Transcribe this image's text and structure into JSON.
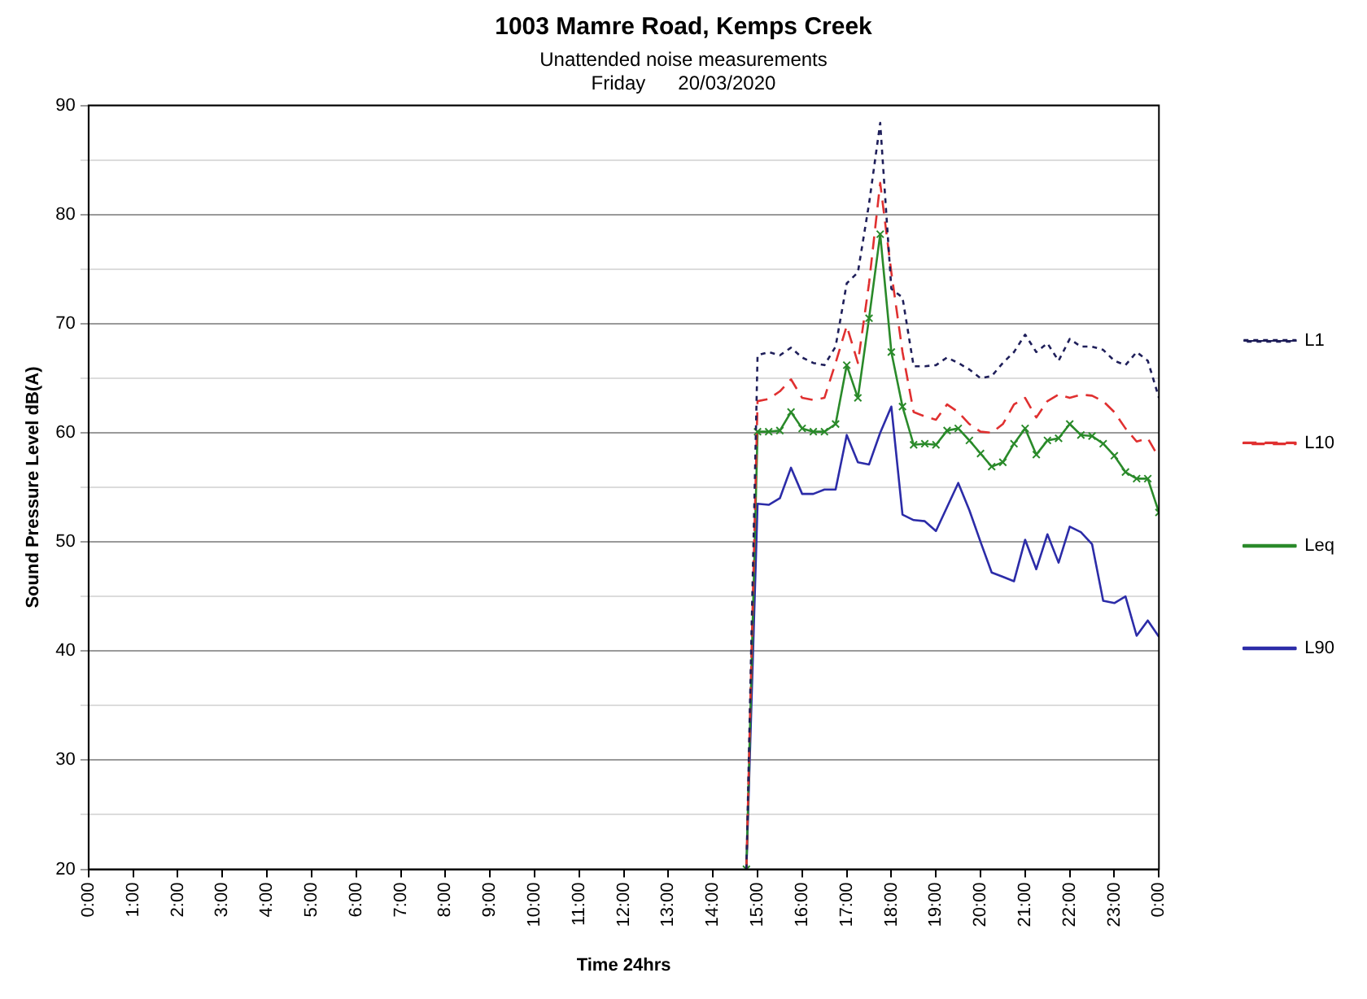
{
  "chart_data": {
    "type": "line",
    "title": "1003 Mamre Road, Kemps Creek",
    "subtitle": "Unattended noise measurements",
    "annotations": [
      "Friday      20/03/2020"
    ],
    "xlabel": "Time 24hrs",
    "ylabel": "Sound Pressure Level dB(A)",
    "x": [
      14.75,
      15,
      15.25,
      15.5,
      15.75,
      16,
      16.25,
      16.5,
      16.75,
      17,
      17.25,
      17.5,
      17.75,
      18,
      18.25,
      18.5,
      18.75,
      19,
      19.25,
      19.5,
      19.75,
      20,
      20.25,
      20.5,
      20.75,
      21,
      21.25,
      21.5,
      21.75,
      22,
      22.25,
      22.5,
      22.75,
      23,
      23.25,
      23.5,
      23.75,
      24
    ],
    "series": [
      {
        "name": "L1",
        "color": "#1f1f5a",
        "line_style": "dotted",
        "marker": "none",
        "values": [
          20,
          67.1,
          67.4,
          67.1,
          67.8,
          66.9,
          66.4,
          66.2,
          67.9,
          73.7,
          74.7,
          81.0,
          88.4,
          73.2,
          72.4,
          66.1,
          66.1,
          66.2,
          66.9,
          66.4,
          65.8,
          65.0,
          65.2,
          66.4,
          67.4,
          69.0,
          67.4,
          68.2,
          66.6,
          68.6,
          67.9,
          67.9,
          67.6,
          66.6,
          66.2,
          67.4,
          66.6,
          63.2
        ]
      },
      {
        "name": "L10",
        "color": "#e03030",
        "line_style": "dashed",
        "marker": "none",
        "values": [
          20,
          62.9,
          63.1,
          63.8,
          64.9,
          63.2,
          63.0,
          63.2,
          66.4,
          69.8,
          66.4,
          73.7,
          82.9,
          74.7,
          67.4,
          61.9,
          61.5,
          61.2,
          62.6,
          61.9,
          60.8,
          60.1,
          60.0,
          60.8,
          62.6,
          63.2,
          61.4,
          62.9,
          63.5,
          63.2,
          63.5,
          63.4,
          62.9,
          61.9,
          60.4,
          59.2,
          59.5,
          57.7
        ]
      },
      {
        "name": "Leq",
        "color": "#2a8a2a",
        "line_style": "solid",
        "marker": "cross",
        "values": [
          20,
          60.1,
          60.1,
          60.2,
          61.9,
          60.4,
          60.1,
          60.1,
          60.8,
          66.2,
          63.2,
          70.5,
          78.2,
          67.4,
          62.4,
          58.9,
          59.0,
          58.9,
          60.2,
          60.4,
          59.3,
          58.1,
          56.9,
          57.3,
          59.0,
          60.4,
          58.0,
          59.3,
          59.5,
          60.8,
          59.8,
          59.7,
          59.0,
          57.9,
          56.4,
          55.8,
          55.8,
          52.7
        ]
      },
      {
        "name": "L90",
        "color": "#2c2ca8",
        "line_style": "solid",
        "marker": "none",
        "values": [
          20,
          53.5,
          53.4,
          54.0,
          56.8,
          54.4,
          54.4,
          54.8,
          54.8,
          59.8,
          57.3,
          57.1,
          60.0,
          62.4,
          52.5,
          52.0,
          51.9,
          51.0,
          53.2,
          55.4,
          52.9,
          50.0,
          47.2,
          46.8,
          46.4,
          50.2,
          47.5,
          50.7,
          48.1,
          51.4,
          50.9,
          49.8,
          44.6,
          44.4,
          45.0,
          41.4,
          42.8,
          41.3
        ]
      }
    ],
    "xlim": [
      0,
      24
    ],
    "xticks": [
      {
        "value": 0,
        "label": "0:00"
      },
      {
        "value": 1,
        "label": "1:00"
      },
      {
        "value": 2,
        "label": "2:00"
      },
      {
        "value": 3,
        "label": "3:00"
      },
      {
        "value": 4,
        "label": "4:00"
      },
      {
        "value": 5,
        "label": "5:00"
      },
      {
        "value": 6,
        "label": "6:00"
      },
      {
        "value": 7,
        "label": "7:00"
      },
      {
        "value": 8,
        "label": "8:00"
      },
      {
        "value": 9,
        "label": "9:00"
      },
      {
        "value": 10,
        "label": "10:00"
      },
      {
        "value": 11,
        "label": "11:00"
      },
      {
        "value": 12,
        "label": "12:00"
      },
      {
        "value": 13,
        "label": "13:00"
      },
      {
        "value": 14,
        "label": "14:00"
      },
      {
        "value": 15,
        "label": "15:00"
      },
      {
        "value": 16,
        "label": "16:00"
      },
      {
        "value": 17,
        "label": "17:00"
      },
      {
        "value": 18,
        "label": "18:00"
      },
      {
        "value": 19,
        "label": "19:00"
      },
      {
        "value": 20,
        "label": "20:00"
      },
      {
        "value": 21,
        "label": "21:00"
      },
      {
        "value": 22,
        "label": "22:00"
      },
      {
        "value": 23,
        "label": "23:00"
      },
      {
        "value": 24,
        "label": "0:00"
      }
    ],
    "ylim": [
      20,
      90
    ],
    "yticks": [
      20,
      {
        "value": 25,
        "label": null
      },
      30,
      {
        "value": 35,
        "label": null
      },
      40,
      {
        "value": 45,
        "label": null
      },
      50,
      {
        "value": 55,
        "label": null
      },
      60,
      {
        "value": 65,
        "label": null
      },
      70,
      {
        "value": 75,
        "label": null
      },
      80,
      {
        "value": 85,
        "label": null
      },
      90
    ],
    "grid": "y",
    "legend": "right"
  }
}
